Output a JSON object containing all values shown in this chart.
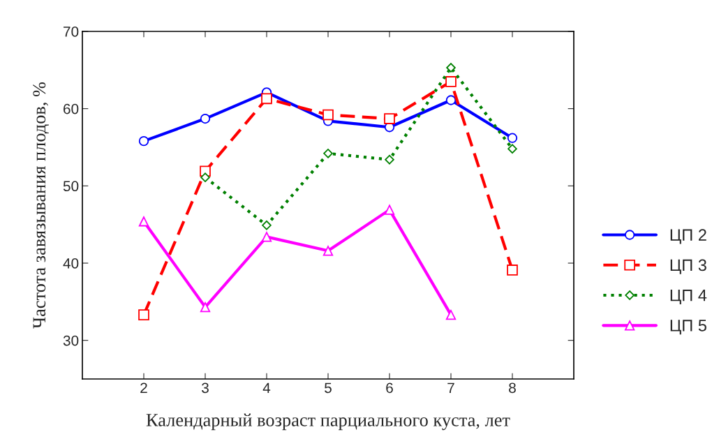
{
  "chart_data": {
    "type": "line",
    "xlabel": "Календарный возраст парциального куста, лет",
    "ylabel": "Частота завязывания плодов, %",
    "x": [
      2,
      3,
      4,
      5,
      6,
      7,
      8
    ],
    "xlim": [
      1,
      9
    ],
    "xticks": [
      2,
      3,
      4,
      5,
      6,
      7,
      8
    ],
    "ylim": [
      25,
      70
    ],
    "yticks": [
      30,
      40,
      50,
      60,
      70
    ],
    "grid": false,
    "legend": "right",
    "series": [
      {
        "name": "ЦП 2",
        "color": "#0000ff",
        "marker": "circle",
        "line_style": "solid",
        "values": [
          55.8,
          58.7,
          62.1,
          58.4,
          57.6,
          61.1,
          56.2
        ]
      },
      {
        "name": "ЦП 3",
        "color": "#ff0000",
        "marker": "square",
        "line_style": "dashed",
        "values": [
          33.3,
          51.9,
          61.3,
          59.2,
          58.7,
          63.5,
          39.1
        ]
      },
      {
        "name": "ЦП 4",
        "color": "#008000",
        "marker": "diamond",
        "line_style": "dotted",
        "values": [
          null,
          51.1,
          44.9,
          54.2,
          53.4,
          65.3,
          54.8
        ]
      },
      {
        "name": "ЦП 5",
        "color": "#ff00ff",
        "marker": "triangle",
        "line_style": "solid",
        "values": [
          45.4,
          34.3,
          43.4,
          41.6,
          46.9,
          33.3,
          null
        ]
      }
    ]
  }
}
